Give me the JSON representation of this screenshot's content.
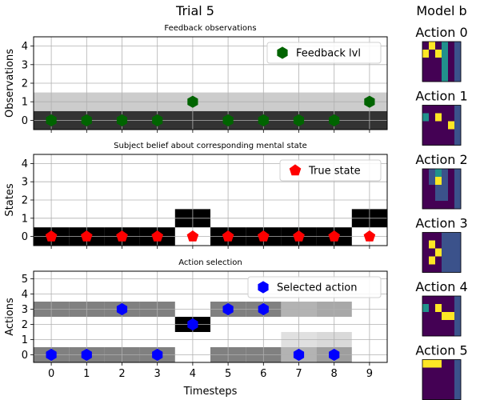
{
  "figure_title": "Trial 5",
  "side_title": "Model b",
  "colors": {
    "feedback_marker": "#006400",
    "true_state_marker": "#ff0000",
    "action_marker": "#0000ff",
    "grid": "#b0b0b0",
    "viridis_dark": "#440154",
    "viridis_blue": "#3b528b",
    "viridis_teal": "#21918c",
    "viridis_yellow": "#fde725"
  },
  "chart_data": [
    {
      "type": "heatmap",
      "title": "Feedback observations",
      "xlabel": "",
      "ylabel": "Observations",
      "x": [
        0,
        1,
        2,
        3,
        4,
        5,
        6,
        7,
        8,
        9
      ],
      "xlim": [
        -0.5,
        9.5
      ],
      "ylim": [
        -0.5,
        4.5
      ],
      "yticks": [
        0,
        1,
        2,
        3,
        4
      ],
      "grid": true,
      "background_rows": [
        {
          "y": 0,
          "gray": 0.2
        },
        {
          "y": 1,
          "gray": 0.8
        }
      ],
      "series": [
        {
          "name": "Feedback lvl",
          "marker": "hexagon",
          "values": [
            0,
            0,
            0,
            0,
            1,
            0,
            0,
            0,
            0,
            1
          ]
        }
      ],
      "legend": "top-right"
    },
    {
      "type": "heatmap",
      "title": "Subject belief about corresponding mental state",
      "xlabel": "",
      "ylabel": "States",
      "x": [
        0,
        1,
        2,
        3,
        4,
        5,
        6,
        7,
        8,
        9
      ],
      "xlim": [
        -0.5,
        9.5
      ],
      "ylim": [
        -0.5,
        4.5
      ],
      "yticks": [
        0,
        1,
        2,
        3,
        4
      ],
      "grid": true,
      "cells": [
        {
          "x": 0,
          "y": 0,
          "gray": 0
        },
        {
          "x": 1,
          "y": 0,
          "gray": 0
        },
        {
          "x": 2,
          "y": 0,
          "gray": 0
        },
        {
          "x": 3,
          "y": 0,
          "gray": 0
        },
        {
          "x": 4,
          "y": 1,
          "gray": 0
        },
        {
          "x": 5,
          "y": 0,
          "gray": 0
        },
        {
          "x": 6,
          "y": 0,
          "gray": 0
        },
        {
          "x": 7,
          "y": 0,
          "gray": 0
        },
        {
          "x": 8,
          "y": 0,
          "gray": 0
        },
        {
          "x": 9,
          "y": 1,
          "gray": 0
        }
      ],
      "series": [
        {
          "name": "True state",
          "marker": "pentagon",
          "values": [
            0,
            0,
            0,
            0,
            0,
            0,
            0,
            0,
            0,
            0
          ]
        }
      ],
      "legend": "top-right"
    },
    {
      "type": "heatmap",
      "title": "Action selection",
      "xlabel": "Timesteps",
      "ylabel": "Actions",
      "x": [
        0,
        1,
        2,
        3,
        4,
        5,
        6,
        7,
        8,
        9
      ],
      "xticks": [
        "0",
        "1",
        "2",
        "3",
        "4",
        "5",
        "6",
        "7",
        "8",
        "9"
      ],
      "xlim": [
        -0.5,
        9.5
      ],
      "ylim": [
        -0.5,
        5.5
      ],
      "yticks": [
        0,
        1,
        2,
        3,
        4,
        5
      ],
      "grid": true,
      "cells": [
        {
          "x": 0,
          "y": 0,
          "gray": 0.5
        },
        {
          "x": 0,
          "y": 3,
          "gray": 0.5
        },
        {
          "x": 1,
          "y": 0,
          "gray": 0.5
        },
        {
          "x": 1,
          "y": 3,
          "gray": 0.5
        },
        {
          "x": 2,
          "y": 0,
          "gray": 0.5
        },
        {
          "x": 2,
          "y": 3,
          "gray": 0.5
        },
        {
          "x": 3,
          "y": 0,
          "gray": 0.5
        },
        {
          "x": 3,
          "y": 3,
          "gray": 0.5
        },
        {
          "x": 4,
          "y": 2,
          "gray": 0
        },
        {
          "x": 5,
          "y": 0,
          "gray": 0.5
        },
        {
          "x": 5,
          "y": 3,
          "gray": 0.5
        },
        {
          "x": 6,
          "y": 0,
          "gray": 0.5
        },
        {
          "x": 6,
          "y": 3,
          "gray": 0.5
        },
        {
          "x": 7,
          "y": 0,
          "gray": 0.7
        },
        {
          "x": 7,
          "y": 1,
          "gray": 0.88
        },
        {
          "x": 7,
          "y": 3,
          "gray": 0.7
        },
        {
          "x": 8,
          "y": 0,
          "gray": 0.62
        },
        {
          "x": 8,
          "y": 1,
          "gray": 0.85
        },
        {
          "x": 8,
          "y": 3,
          "gray": 0.66
        }
      ],
      "series": [
        {
          "name": "Selected action",
          "marker": "hexagon",
          "values": [
            0,
            0,
            3,
            0,
            2,
            3,
            3,
            0,
            0,
            null
          ]
        }
      ],
      "legend": "top-right"
    },
    {
      "type": "heatmap",
      "title_prefix": "Action",
      "matrices": [
        {
          "title": "Action 0",
          "rows": [
            [
              0,
              3,
              0,
              2,
              0,
              1
            ],
            [
              3,
              0,
              3,
              2,
              0,
              1
            ],
            [
              0,
              0,
              0,
              2,
              0,
              1
            ],
            [
              0,
              0,
              0,
              2,
              0,
              1
            ],
            [
              0,
              0,
              0,
              2,
              0,
              1
            ]
          ]
        },
        {
          "title": "Action 1",
          "rows": [
            [
              0,
              0,
              0,
              0,
              0,
              1
            ],
            [
              2,
              0,
              3,
              0,
              0,
              1
            ],
            [
              0,
              0,
              0,
              0,
              3,
              1
            ],
            [
              0,
              0,
              0,
              0,
              0,
              1
            ],
            [
              0,
              0,
              0,
              0,
              0,
              1
            ]
          ]
        },
        {
          "title": "Action 2",
          "rows": [
            [
              0,
              1,
              2,
              1,
              0,
              1
            ],
            [
              0,
              1,
              3,
              1,
              0,
              1
            ],
            [
              0,
              0,
              1,
              1,
              0,
              1
            ],
            [
              0,
              0,
              1,
              1,
              0,
              1
            ],
            [
              0,
              0,
              0,
              0,
              0,
              1
            ]
          ]
        },
        {
          "title": "Action 3",
          "rows": [
            [
              0,
              0,
              0,
              1,
              1,
              1
            ],
            [
              0,
              3,
              0,
              1,
              1,
              1
            ],
            [
              0,
              0,
              3,
              1,
              1,
              1
            ],
            [
              0,
              3,
              0,
              1,
              1,
              1
            ],
            [
              0,
              0,
              0,
              1,
              1,
              1
            ]
          ]
        },
        {
          "title": "Action 4",
          "rows": [
            [
              0,
              0,
              0,
              0,
              0,
              1
            ],
            [
              2,
              0,
              3,
              0,
              0,
              1
            ],
            [
              0,
              0,
              0,
              3,
              3,
              1
            ],
            [
              0,
              0,
              0,
              0,
              0,
              1
            ],
            [
              0,
              0,
              0,
              0,
              0,
              1
            ]
          ]
        },
        {
          "title": "Action 5",
          "rows": [
            [
              3,
              3,
              3,
              0,
              0,
              1
            ],
            [
              0,
              0,
              0,
              0,
              0,
              1
            ],
            [
              0,
              0,
              0,
              0,
              0,
              1
            ],
            [
              0,
              0,
              0,
              0,
              0,
              1
            ],
            [
              0,
              0,
              0,
              0,
              0,
              1
            ]
          ]
        }
      ]
    }
  ]
}
